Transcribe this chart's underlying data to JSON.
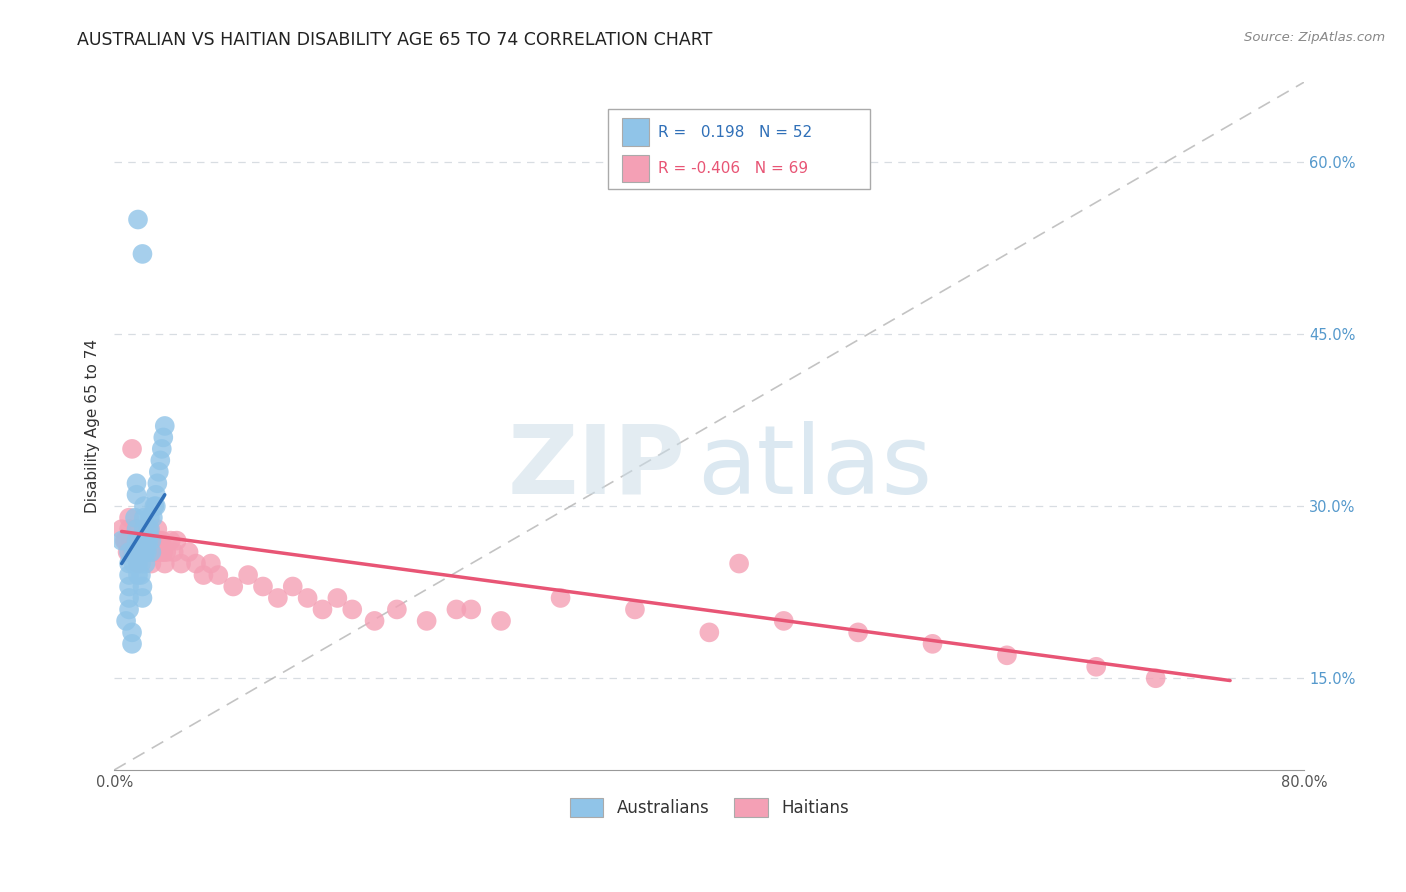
{
  "title": "AUSTRALIAN VS HAITIAN DISABILITY AGE 65 TO 74 CORRELATION CHART",
  "source": "Source: ZipAtlas.com",
  "ylabel": "Disability Age 65 to 74",
  "xlim": [
    0.0,
    0.8
  ],
  "ylim": [
    0.07,
    0.67
  ],
  "x_ticks": [
    0.0,
    0.1,
    0.2,
    0.3,
    0.4,
    0.5,
    0.6,
    0.7,
    0.8
  ],
  "x_tick_labels": [
    "0.0%",
    "",
    "",
    "",
    "",
    "",
    "",
    "",
    "80.0%"
  ],
  "y_ticks": [
    0.15,
    0.3,
    0.45,
    0.6
  ],
  "y_tick_labels": [
    "15.0%",
    "30.0%",
    "45.0%",
    "60.0%"
  ],
  "australian_R": "0.198",
  "australian_N": "52",
  "haitian_R": "-0.406",
  "haitian_N": "69",
  "australian_color": "#90c4e8",
  "haitian_color": "#f4a0b5",
  "australian_line_color": "#3070b8",
  "haitian_line_color": "#e85575",
  "diagonal_color": "#aaaaaa",
  "background_color": "#ffffff",
  "grid_color": "#d8dde2",
  "title_fontsize": 12.5,
  "axis_label_fontsize": 11,
  "tick_fontsize": 10.5,
  "legend_fontsize": 11,
  "australian_x": [
    0.005,
    0.008,
    0.01,
    0.01,
    0.01,
    0.01,
    0.01,
    0.01,
    0.012,
    0.012,
    0.013,
    0.013,
    0.014,
    0.015,
    0.015,
    0.015,
    0.015,
    0.015,
    0.016,
    0.016,
    0.017,
    0.018,
    0.018,
    0.018,
    0.019,
    0.019,
    0.02,
    0.02,
    0.02,
    0.02,
    0.021,
    0.021,
    0.022,
    0.022,
    0.023,
    0.023,
    0.024,
    0.024,
    0.025,
    0.025,
    0.026,
    0.027,
    0.028,
    0.028,
    0.029,
    0.03,
    0.031,
    0.032,
    0.033,
    0.034,
    0.016,
    0.019
  ],
  "australian_y": [
    0.27,
    0.2,
    0.26,
    0.25,
    0.24,
    0.23,
    0.22,
    0.21,
    0.19,
    0.18,
    0.26,
    0.25,
    0.29,
    0.32,
    0.31,
    0.28,
    0.27,
    0.26,
    0.25,
    0.24,
    0.27,
    0.26,
    0.25,
    0.24,
    0.23,
    0.22,
    0.3,
    0.29,
    0.28,
    0.27,
    0.26,
    0.25,
    0.27,
    0.26,
    0.28,
    0.27,
    0.29,
    0.28,
    0.27,
    0.26,
    0.29,
    0.3,
    0.31,
    0.3,
    0.32,
    0.33,
    0.34,
    0.35,
    0.36,
    0.37,
    0.55,
    0.52
  ],
  "haitian_x": [
    0.005,
    0.007,
    0.008,
    0.009,
    0.01,
    0.01,
    0.011,
    0.012,
    0.012,
    0.013,
    0.014,
    0.015,
    0.015,
    0.016,
    0.016,
    0.017,
    0.018,
    0.019,
    0.02,
    0.021,
    0.022,
    0.023,
    0.024,
    0.025,
    0.025,
    0.026,
    0.027,
    0.028,
    0.029,
    0.03,
    0.031,
    0.032,
    0.033,
    0.034,
    0.035,
    0.038,
    0.04,
    0.042,
    0.045,
    0.05,
    0.055,
    0.06,
    0.065,
    0.07,
    0.08,
    0.09,
    0.1,
    0.11,
    0.12,
    0.13,
    0.14,
    0.15,
    0.16,
    0.175,
    0.19,
    0.21,
    0.23,
    0.26,
    0.3,
    0.35,
    0.4,
    0.45,
    0.5,
    0.55,
    0.6,
    0.66,
    0.7,
    0.24,
    0.42
  ],
  "haitian_y": [
    0.28,
    0.27,
    0.27,
    0.26,
    0.29,
    0.28,
    0.27,
    0.35,
    0.26,
    0.27,
    0.26,
    0.28,
    0.27,
    0.25,
    0.27,
    0.26,
    0.27,
    0.26,
    0.28,
    0.27,
    0.27,
    0.26,
    0.28,
    0.25,
    0.27,
    0.26,
    0.27,
    0.26,
    0.28,
    0.27,
    0.26,
    0.27,
    0.26,
    0.25,
    0.26,
    0.27,
    0.26,
    0.27,
    0.25,
    0.26,
    0.25,
    0.24,
    0.25,
    0.24,
    0.23,
    0.24,
    0.23,
    0.22,
    0.23,
    0.22,
    0.21,
    0.22,
    0.21,
    0.2,
    0.21,
    0.2,
    0.21,
    0.2,
    0.22,
    0.21,
    0.19,
    0.2,
    0.19,
    0.18,
    0.17,
    0.16,
    0.15,
    0.21,
    0.25
  ],
  "aus_line_x": [
    0.005,
    0.034
  ],
  "aus_line_y": [
    0.25,
    0.31
  ],
  "hai_line_x": [
    0.005,
    0.75
  ],
  "hai_line_y": [
    0.278,
    0.148
  ]
}
